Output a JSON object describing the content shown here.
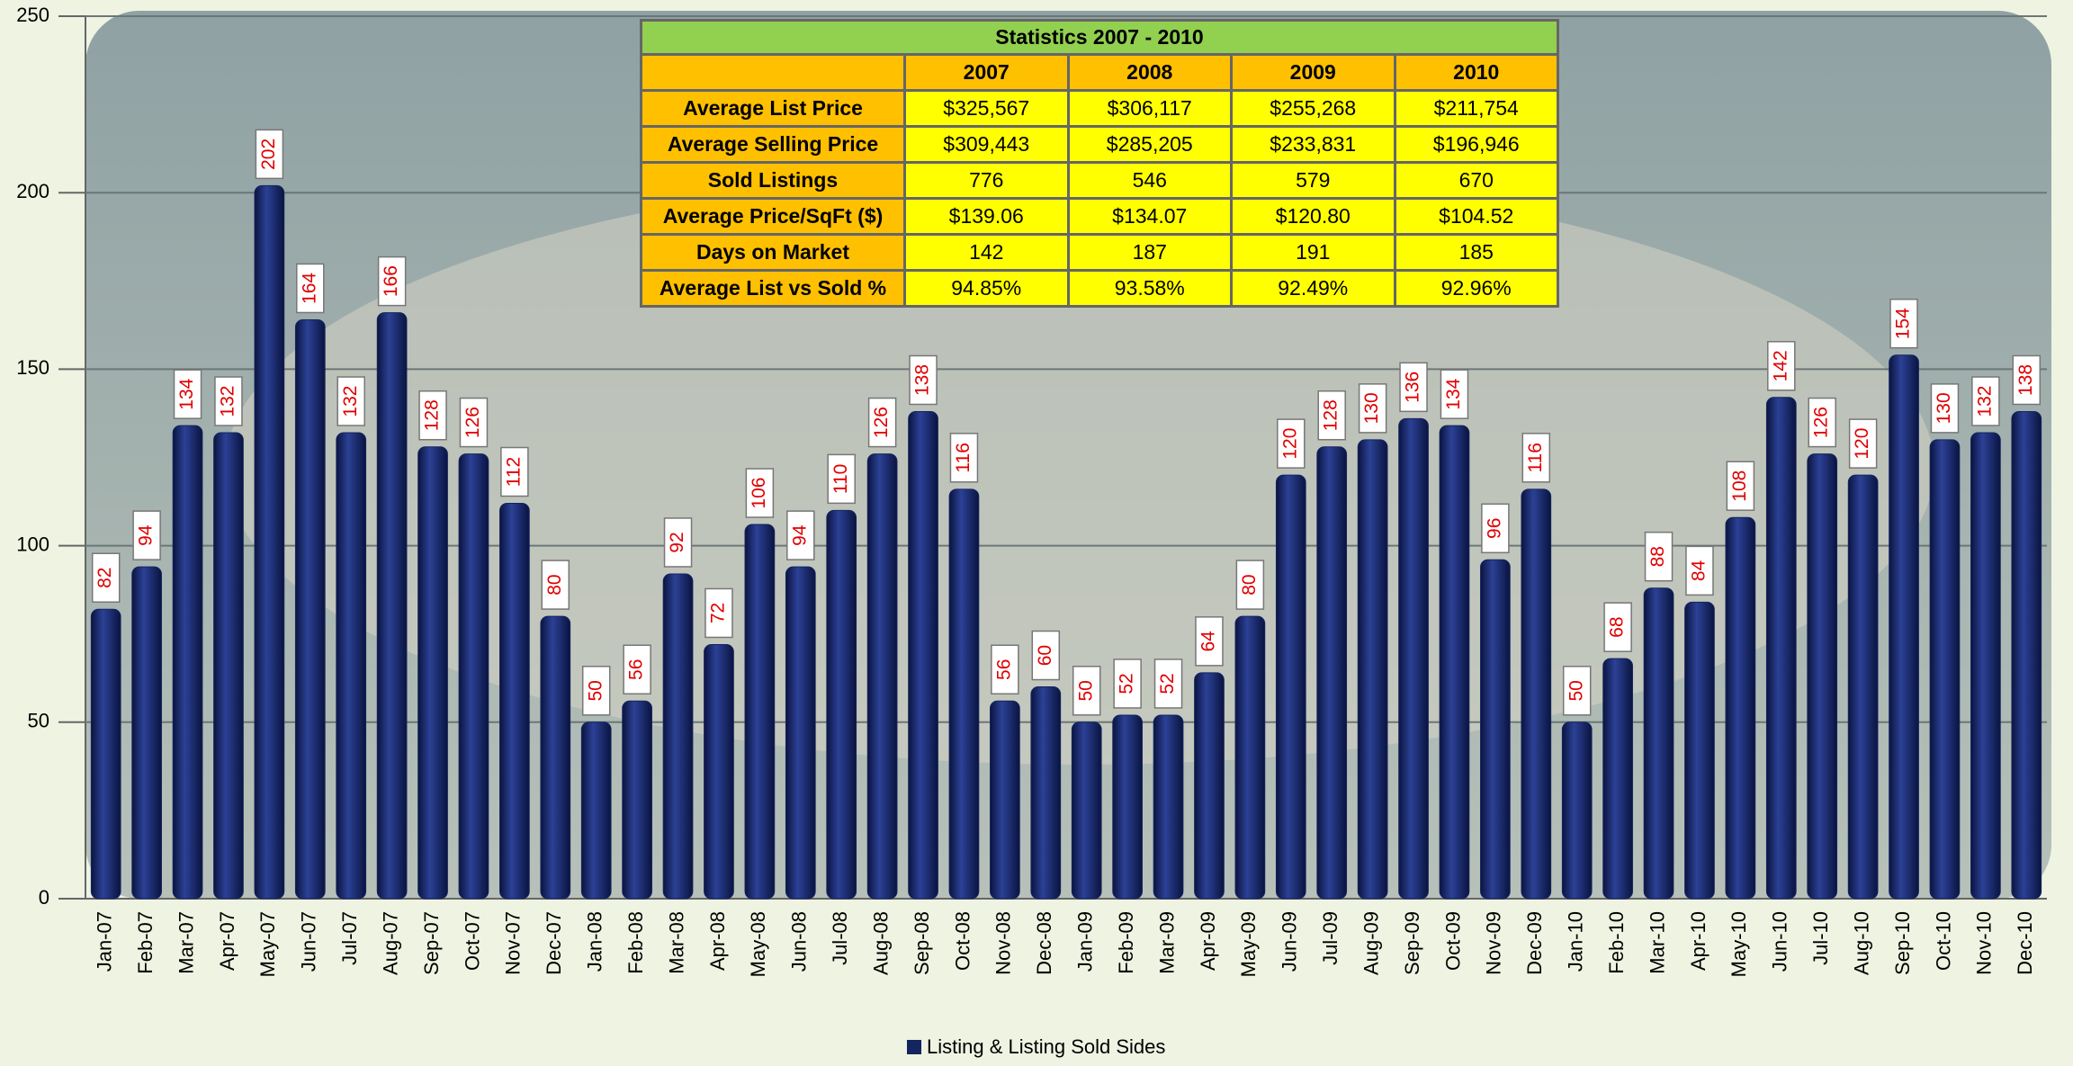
{
  "chart_data": {
    "type": "bar",
    "categories": [
      "Jan-07",
      "Feb-07",
      "Mar-07",
      "Apr-07",
      "May-07",
      "Jun-07",
      "Jul-07",
      "Aug-07",
      "Sep-07",
      "Oct-07",
      "Nov-07",
      "Dec-07",
      "Jan-08",
      "Feb-08",
      "Mar-08",
      "Apr-08",
      "May-08",
      "Jun-08",
      "Jul-08",
      "Aug-08",
      "Sep-08",
      "Oct-08",
      "Nov-08",
      "Dec-08",
      "Jan-09",
      "Feb-09",
      "Mar-09",
      "Apr-09",
      "May-09",
      "Jun-09",
      "Jul-09",
      "Aug-09",
      "Sep-09",
      "Oct-09",
      "Nov-09",
      "Dec-09",
      "Jan-10",
      "Feb-10",
      "Mar-10",
      "Apr-10",
      "May-10",
      "Jun-10",
      "Jul-10",
      "Aug-10",
      "Sep-10",
      "Oct-10",
      "Nov-10",
      "Dec-10"
    ],
    "series": [
      {
        "name": "Listing & Listing Sold Sides",
        "color": "#14245e",
        "values": [
          82,
          94,
          134,
          132,
          202,
          164,
          132,
          166,
          128,
          126,
          112,
          80,
          50,
          56,
          92,
          72,
          106,
          94,
          110,
          126,
          138,
          116,
          56,
          60,
          50,
          52,
          52,
          64,
          80,
          120,
          128,
          130,
          136,
          134,
          96,
          116,
          50,
          68,
          88,
          84,
          108,
          142,
          126,
          120,
          154,
          130,
          132,
          138
        ]
      }
    ],
    "ylim": [
      0,
      250
    ],
    "yticks": [
      0,
      50,
      100,
      150,
      200,
      250
    ],
    "grid": true,
    "legend": "bottom"
  },
  "table": {
    "title": "Statistics 2007 - 2010",
    "columns": [
      "2007",
      "2008",
      "2009",
      "2010"
    ],
    "rows": [
      {
        "label": "Average List Price",
        "values": [
          "$325,567",
          "$306,117",
          "$255,268",
          "$211,754"
        ]
      },
      {
        "label": "Average Selling Price",
        "values": [
          "$309,443",
          "$285,205",
          "$233,831",
          "$196,946"
        ]
      },
      {
        "label": "Sold Listings",
        "values": [
          "776",
          "546",
          "579",
          "670"
        ]
      },
      {
        "label": "Average Price/SqFt ($)",
        "values": [
          "$139.06",
          "$134.07",
          "$120.80",
          "$104.52"
        ]
      },
      {
        "label": "Days on Market",
        "values": [
          "142",
          "187",
          "191",
          "185"
        ]
      },
      {
        "label": "Average List vs Sold %",
        "values": [
          "94.85%",
          "93.58%",
          "92.49%",
          "92.96%"
        ]
      }
    ]
  }
}
